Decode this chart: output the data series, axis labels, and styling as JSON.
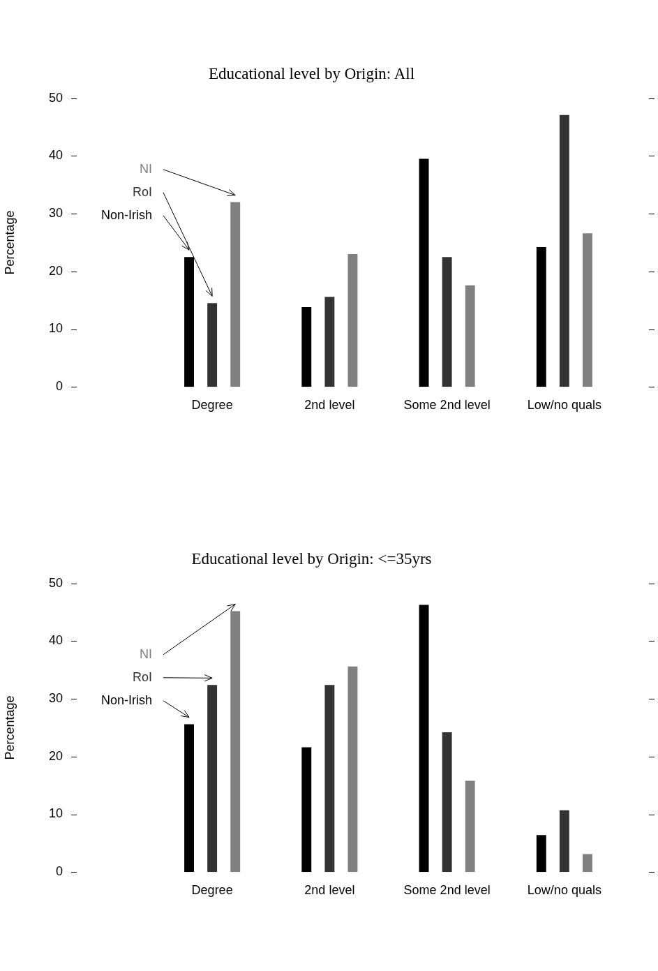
{
  "chart_data": [
    {
      "type": "bar",
      "title": "Educational level by Origin: All",
      "ylabel": "Percentage",
      "categories": [
        "Degree",
        "2nd level",
        "Some 2nd level",
        "Low/no quals"
      ],
      "ylim": [
        0,
        50
      ],
      "yticks": [
        0,
        10,
        20,
        30,
        40,
        50
      ],
      "series": [
        {
          "name": "Non-Irish",
          "color": "#000000",
          "values": [
            22.5,
            13.8,
            39.5,
            24.2
          ]
        },
        {
          "name": "RoI",
          "color": "#333333",
          "values": [
            14.5,
            15.6,
            22.5,
            47.1
          ]
        },
        {
          "name": "NI",
          "color": "#808080",
          "values": [
            32.0,
            23.0,
            17.6,
            26.6
          ]
        }
      ]
    },
    {
      "type": "bar",
      "title": "Educational level by Origin: <=35yrs",
      "ylabel": "Percentage",
      "categories": [
        "Degree",
        "2nd level",
        "Some 2nd level",
        "Low/no quals"
      ],
      "ylim": [
        0,
        50
      ],
      "yticks": [
        0,
        10,
        20,
        30,
        40,
        50
      ],
      "series": [
        {
          "name": "Non-Irish",
          "color": "#000000",
          "values": [
            25.6,
            21.6,
            46.3,
            6.4
          ]
        },
        {
          "name": "RoI",
          "color": "#333333",
          "values": [
            32.4,
            32.4,
            24.2,
            10.7
          ]
        },
        {
          "name": "NI",
          "color": "#808080",
          "values": [
            45.2,
            35.6,
            15.8,
            3.1
          ]
        }
      ]
    }
  ]
}
